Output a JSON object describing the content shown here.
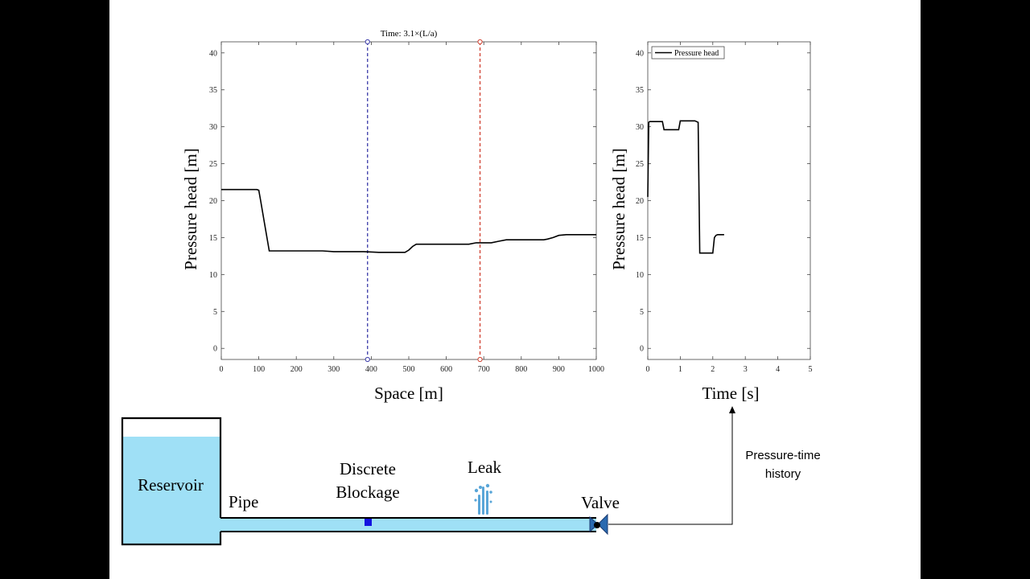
{
  "chart_data": [
    {
      "type": "line",
      "title": "Time: 3.1×(L/a)",
      "xlabel": "Space [m]",
      "ylabel": "Pressure head [m]",
      "xlim": [
        0,
        1000
      ],
      "ylim": [
        -1.5,
        41.5
      ],
      "xticks": [
        "0",
        "100",
        "200",
        "300",
        "400",
        "500",
        "600",
        "700",
        "800",
        "900",
        "1000"
      ],
      "yticks": [
        "0",
        "5",
        "10",
        "15",
        "20",
        "25",
        "30",
        "35",
        "40"
      ],
      "grid": false,
      "markers": [
        {
          "x": 390,
          "color": "#3a3aa8"
        },
        {
          "x": 690,
          "color": "#d04030"
        }
      ],
      "series": [
        {
          "color": "#000000",
          "x": [
            0,
            95,
            100,
            105,
            115,
            128,
            135,
            270,
            300,
            380,
            420,
            460,
            490,
            500,
            510,
            520,
            560,
            600,
            660,
            680,
            720,
            740,
            760,
            860,
            870,
            885,
            900,
            920,
            1000
          ],
          "y": [
            21.5,
            21.5,
            21.4,
            20,
            17,
            13.2,
            13.2,
            13.2,
            13.1,
            13.1,
            13.0,
            13.0,
            13.0,
            13.3,
            13.8,
            14.1,
            14.1,
            14.1,
            14.1,
            14.3,
            14.3,
            14.5,
            14.7,
            14.7,
            14.8,
            15.0,
            15.3,
            15.4,
            15.4
          ]
        }
      ]
    },
    {
      "type": "line",
      "xlabel": "Time [s]",
      "ylabel": "Pressure head [m]",
      "xlim": [
        0,
        5
      ],
      "ylim": [
        -1.5,
        41.5
      ],
      "xticks": [
        "0",
        "1",
        "2",
        "3",
        "4",
        "5"
      ],
      "yticks": [
        "0",
        "5",
        "10",
        "15",
        "20",
        "25",
        "30",
        "35",
        "40"
      ],
      "legend": "top-left",
      "grid": false,
      "series": [
        {
          "name": "Pressure head",
          "color": "#000000",
          "x": [
            0,
            0.03,
            0.06,
            0.45,
            0.5,
            0.95,
            1.0,
            1.45,
            1.5,
            1.55,
            1.58,
            1.6,
            2.0,
            2.05,
            2.1,
            2.15,
            2.35
          ],
          "y": [
            20.5,
            30.6,
            30.7,
            30.7,
            29.6,
            29.6,
            30.8,
            30.8,
            30.7,
            30.6,
            20,
            12.9,
            12.9,
            15.0,
            15.3,
            15.4,
            15.4
          ]
        }
      ]
    }
  ],
  "diagram": {
    "reservoir": "Reservoir",
    "pipe": "Pipe",
    "blockage_line1": "Discrete",
    "blockage_line2": "Blockage",
    "leak": "Leak",
    "valve": "Valve",
    "history_line1": "Pressure-time",
    "history_line2": "history"
  },
  "colors": {
    "water": "#9fe0f6",
    "blockage": "#1414e0",
    "leak": "#5aa6d8",
    "valve": "#2a6ab0"
  }
}
